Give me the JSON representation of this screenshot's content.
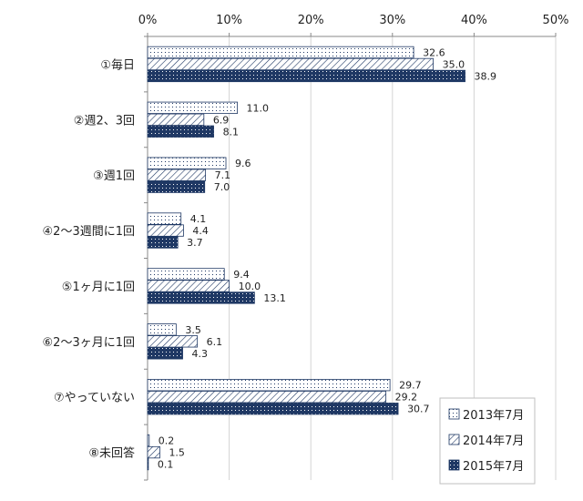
{
  "chart_data": {
    "type": "bar",
    "orientation": "horizontal",
    "categories": [
      "①毎日",
      "②週2、3回",
      "③週1回",
      "④2～3週間に1回",
      "⑤1ヶ月に1回",
      "⑥2～3ヶ月に1回",
      "⑦やっていない",
      "⑧未回答"
    ],
    "series": [
      {
        "name": "2013年7月",
        "values": [
          32.6,
          11.0,
          9.6,
          4.1,
          9.4,
          3.5,
          29.7,
          0.2
        ],
        "labels": [
          "32.6",
          "11.0",
          "9.6",
          "4.1",
          "9.4",
          "3.5",
          "29.7",
          "0.2"
        ],
        "pattern": "dots",
        "fill": "#ffffff",
        "stroke": "#1f3864"
      },
      {
        "name": "2014年7月",
        "values": [
          35.0,
          6.9,
          7.1,
          4.4,
          10.0,
          6.1,
          29.2,
          1.5
        ],
        "labels": [
          "35.0",
          "6.9",
          "7.1",
          "4.4",
          "10.0",
          "6.1",
          "29.2",
          "1.5"
        ],
        "pattern": "diagonal",
        "fill": "#ffffff",
        "stroke": "#1f3864"
      },
      {
        "name": "2015年7月",
        "values": [
          38.9,
          8.1,
          7.0,
          3.7,
          13.1,
          4.3,
          30.7,
          0.1
        ],
        "labels": [
          "38.9",
          "8.1",
          "7.0",
          "3.7",
          "13.1",
          "4.3",
          "30.7",
          "0.1"
        ],
        "pattern": "solid-dots",
        "fill": "#1f3864",
        "stroke": "#1f3864"
      }
    ],
    "xlim": [
      0,
      50
    ],
    "xticks": [
      "0%",
      "10%",
      "20%",
      "30%",
      "40%",
      "50%"
    ],
    "x_axis_position": "top",
    "grid": true,
    "legend_position": "bottom-right",
    "title": "",
    "xlabel": "",
    "ylabel": ""
  }
}
